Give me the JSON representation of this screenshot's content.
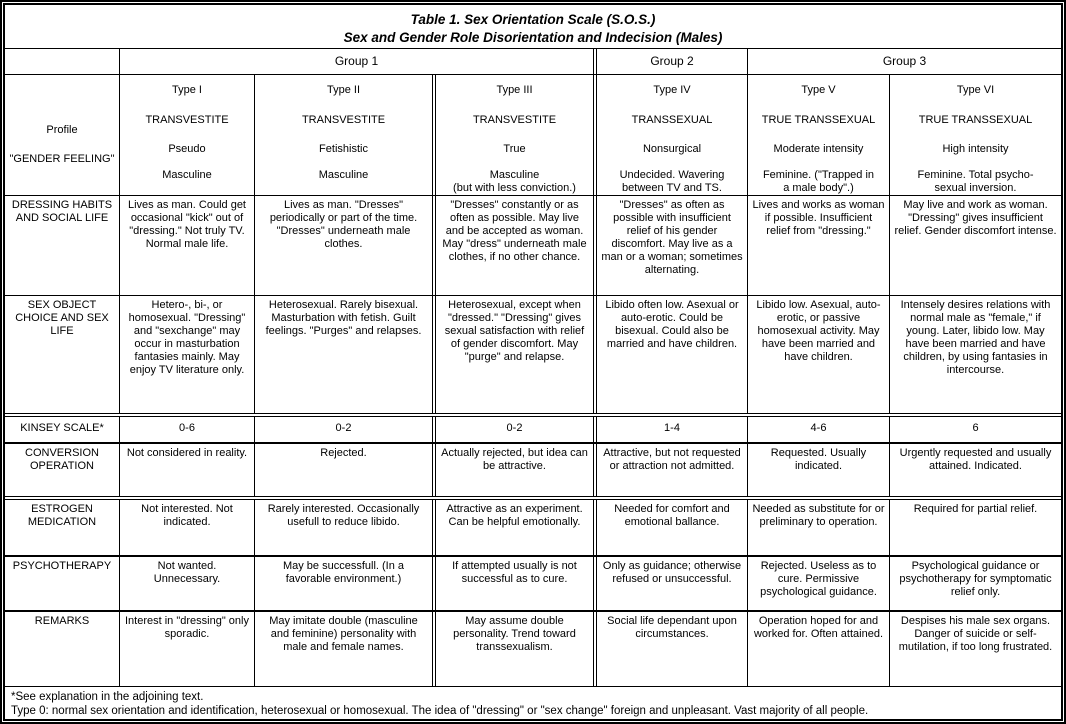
{
  "title": {
    "line1": "Table 1. Sex Orientation Scale (S.O.S.)",
    "line2": "Sex and Gender Role Disorientation and Indecision (Males)"
  },
  "group_headers": [
    "Group 1",
    "Group 2",
    "Group 3"
  ],
  "profile": {
    "label_line1": "Profile",
    "label_line2": "\"GENDER FEELING\"",
    "types": [
      {
        "type": "Type I",
        "name": "TRANSVESTITE",
        "subtype": "Pseudo",
        "feeling": "Masculine"
      },
      {
        "type": "Type II",
        "name": "TRANSVESTITE",
        "subtype": "Fetishistic",
        "feeling": "Masculine"
      },
      {
        "type": "Type III",
        "name": "TRANSVESTITE",
        "subtype": "True",
        "feeling": "Masculine\n(but with less conviction.)"
      },
      {
        "type": "Type IV",
        "name": "TRANSSEXUAL",
        "subtype": "Nonsurgical",
        "feeling": "Undecided. Wavering\nbetween TV and TS."
      },
      {
        "type": "Type V",
        "name": "TRUE TRANSSEXUAL",
        "subtype": "Moderate intensity",
        "feeling": "Feminine. (\"Trapped in\na male body\".)"
      },
      {
        "type": "Type VI",
        "name": "TRUE TRANSSEXUAL",
        "subtype": "High intensity",
        "feeling": "Feminine. Total psycho-\nsexual inversion."
      }
    ]
  },
  "rows": [
    {
      "label": "DRESSING HABITS AND SOCIAL LIFE",
      "cells": [
        "Lives as man. Could get occasional \"kick\" out of \"dressing.\" Not truly TV. Normal male life.",
        "Lives as man. \"Dresses\" periodically or part of the time. \"Dresses\" underneath male clothes.",
        "\"Dresses\" constantly or as often as possible. May live and be accepted as woman. May \"dress\" underneath male clothes, if no other chance.",
        "\"Dresses\" as often as possible with insufficient relief of his gender discomfort. May live as a man or a woman; sometimes alternating.",
        "Lives and works as woman if possible. Insufficient relief from \"dressing.\"",
        "May live and work as woman. \"Dressing\" gives insufficient relief. Gender discomfort intense."
      ]
    },
    {
      "label": "SEX OBJECT CHOICE AND SEX LIFE",
      "cells": [
        "Hetero-, bi-, or homosexual. \"Dressing\" and \"sexchange\" may occur in masturbation fantasies mainly. May enjoy TV literature only.",
        "Heterosexual. Rarely bisexual. Masturbation with fetish. Guilt feelings. \"Purges\" and relapses.",
        "Heterosexual, except when \"dressed.\" \"Dressing\" gives sexual satisfaction with relief of gender discomfort. May \"purge\" and relapse.",
        "Libido often low. Asexual or auto-erotic. Could be bisexual. Could also be married and have children.",
        "Libido low. Asexual, auto-erotic, or passive homosexual activity. May have been married and have children.",
        "Intensely desires relations with normal male as \"female,\" if young. Later, libido low. May have been married and have children, by using fantasies in intercourse."
      ]
    },
    {
      "label": "KINSEY SCALE*",
      "cells": [
        "0-6",
        "0-2",
        "0-2",
        "1-4",
        "4-6",
        "6"
      ]
    },
    {
      "label": "CONVERSION OPERATION",
      "cells": [
        "Not considered in reality.",
        "Rejected.",
        "Actually rejected, but idea can be attractive.",
        "Attractive, but not requested or attraction not admitted.",
        "Requested. Usually indicated.",
        "Urgently requested and usually attained. Indicated."
      ]
    },
    {
      "label": "ESTROGEN MEDICATION",
      "cells": [
        "Not interested. Not indicated.",
        "Rarely interested. Occasionally usefull to reduce libido.",
        "Attractive as an experiment. Can be helpful emotionally.",
        "Needed for comfort and emotional ballance.",
        "Needed as substitute for or preliminary to operation.",
        "Required for partial relief."
      ]
    },
    {
      "label": "PSYCHOTHERAPY",
      "cells": [
        "Not wanted. Unnecessary.",
        "May be successfull. (In a favorable environment.)",
        "If attempted usually is not successful as to cure.",
        "Only as guidance; otherwise refused or unsuccessful.",
        "Rejected. Useless as to cure. Permissive psychological guidance.",
        "Psychological guidance or psychotherapy for symptomatic relief only."
      ]
    },
    {
      "label": "REMARKS",
      "cells": [
        "Interest in \"dressing\" only sporadic.",
        "May imitate double (masculine and feminine) personality with male and female names.",
        "May assume double personality. Trend toward transsexualism.",
        "Social life dependant upon circumstances.",
        "Operation hoped for and worked for. Often attained.",
        "Despises his male sex organs. Danger of suicide or self-mutilation, if too long frustrated."
      ]
    }
  ],
  "footnote": {
    "line1": "*See explanation in the adjoining text.",
    "line2": "Type 0: normal sex orientation and identification, heterosexual or homosexual. The idea of \"dressing\" or \"sex change\" foreign and unpleasant. Vast majority of all people."
  }
}
